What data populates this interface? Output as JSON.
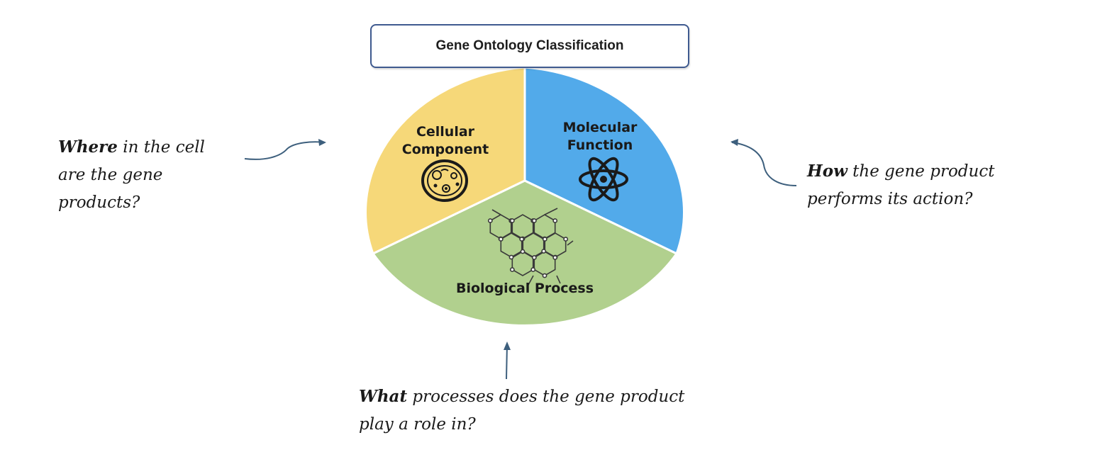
{
  "title": "Gene Ontology Classification",
  "segments": {
    "cellular_component": {
      "line1": "Cellular",
      "line2": "Component",
      "color": "#f6d879",
      "icon": "cell-icon"
    },
    "molecular_function": {
      "line1": "Molecular",
      "line2": "Function",
      "color": "#52aaea",
      "icon": "atom-icon"
    },
    "biological_process": {
      "label": "Biological Process",
      "color": "#b1d08e",
      "icon": "molecule-network-icon"
    }
  },
  "questions": {
    "where": {
      "keyword": "Where",
      "line1_rest": " in the cell",
      "line2": "are the gene",
      "line3": "products?"
    },
    "how": {
      "keyword": "How",
      "line1_rest": " the gene product",
      "line2": "performs its action?"
    },
    "what": {
      "keyword": "What",
      "line1_rest": " processes does the gene product",
      "line2": "play a role in?"
    }
  },
  "arrow_color": "#3d5f7d"
}
